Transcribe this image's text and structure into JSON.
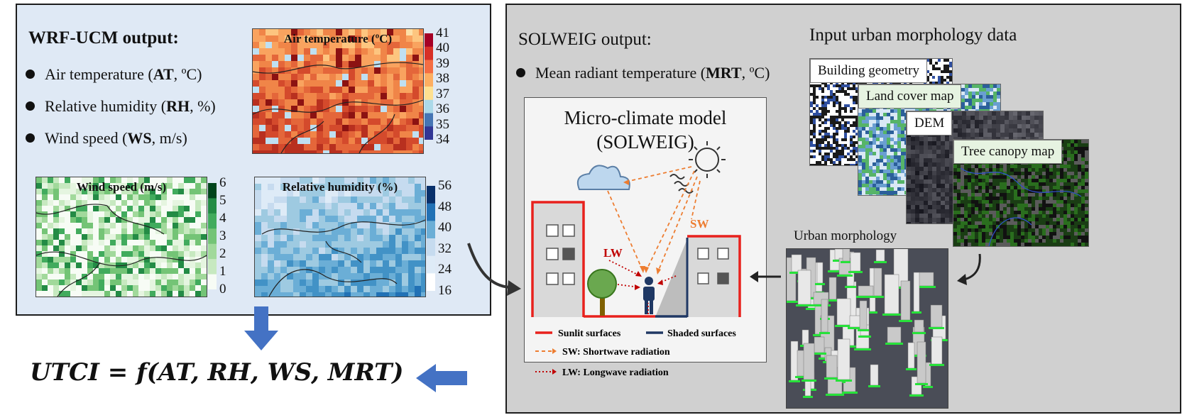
{
  "wrf": {
    "title": "WRF-UCM output:",
    "items": [
      {
        "pre": "Air temperature (",
        "bold": "AT",
        "post": ", ºC)"
      },
      {
        "pre": "Relative humidity (",
        "bold": "RH",
        "post": ", %)"
      },
      {
        "pre": "Wind speed (",
        "bold": "WS",
        "post": ", m/s)"
      }
    ]
  },
  "maps": {
    "air_temperature": {
      "title": "Air temperature (ºC)",
      "ticks": [
        "41",
        "40",
        "39",
        "38",
        "37",
        "36",
        "35",
        "34"
      ]
    },
    "wind_speed": {
      "title": "Wind speed (m/s)",
      "ticks": [
        "6",
        "5",
        "4",
        "3",
        "2",
        "1",
        "0"
      ]
    },
    "relative_humidity": {
      "title": "Relative humidity (%)",
      "ticks": [
        "56",
        "48",
        "40",
        "32",
        "24",
        "16"
      ]
    }
  },
  "formula": "UTCI = f(AT, RH, WS, MRT)",
  "solweig": {
    "title": "SOLWEIG output:",
    "item": {
      "pre": "Mean radiant temperature (",
      "bold": "MRT",
      "post": ", ºC)"
    }
  },
  "micro": {
    "title_line1": "Micro-climate model",
    "title_line2": "(SOLWEIG)",
    "sw_label": "SW",
    "lw_label": "LW",
    "legend": {
      "sunlit": "Sunlit surfaces",
      "shaded": "Shaded surfaces",
      "sw": "SW: Shortwave radiation",
      "lw": "LW: Longwave radiation"
    }
  },
  "inputs": {
    "title": "Input urban morphology data",
    "cards": [
      "Building geometry",
      "Land cover map",
      "DEM",
      "Tree canopy map"
    ],
    "urban_morphology": "Urban morphology"
  },
  "colors": {
    "left_panel_bg": "#dfe9f5",
    "right_panel_bg": "#d0d0d0",
    "arrow_blue": "#4472c4",
    "sunlit_red": "#e8211d",
    "shaded_navy": "#203864",
    "sw_orange": "#ed7d31",
    "lw_red": "#c00000",
    "green_label": "#e6f3e1"
  }
}
